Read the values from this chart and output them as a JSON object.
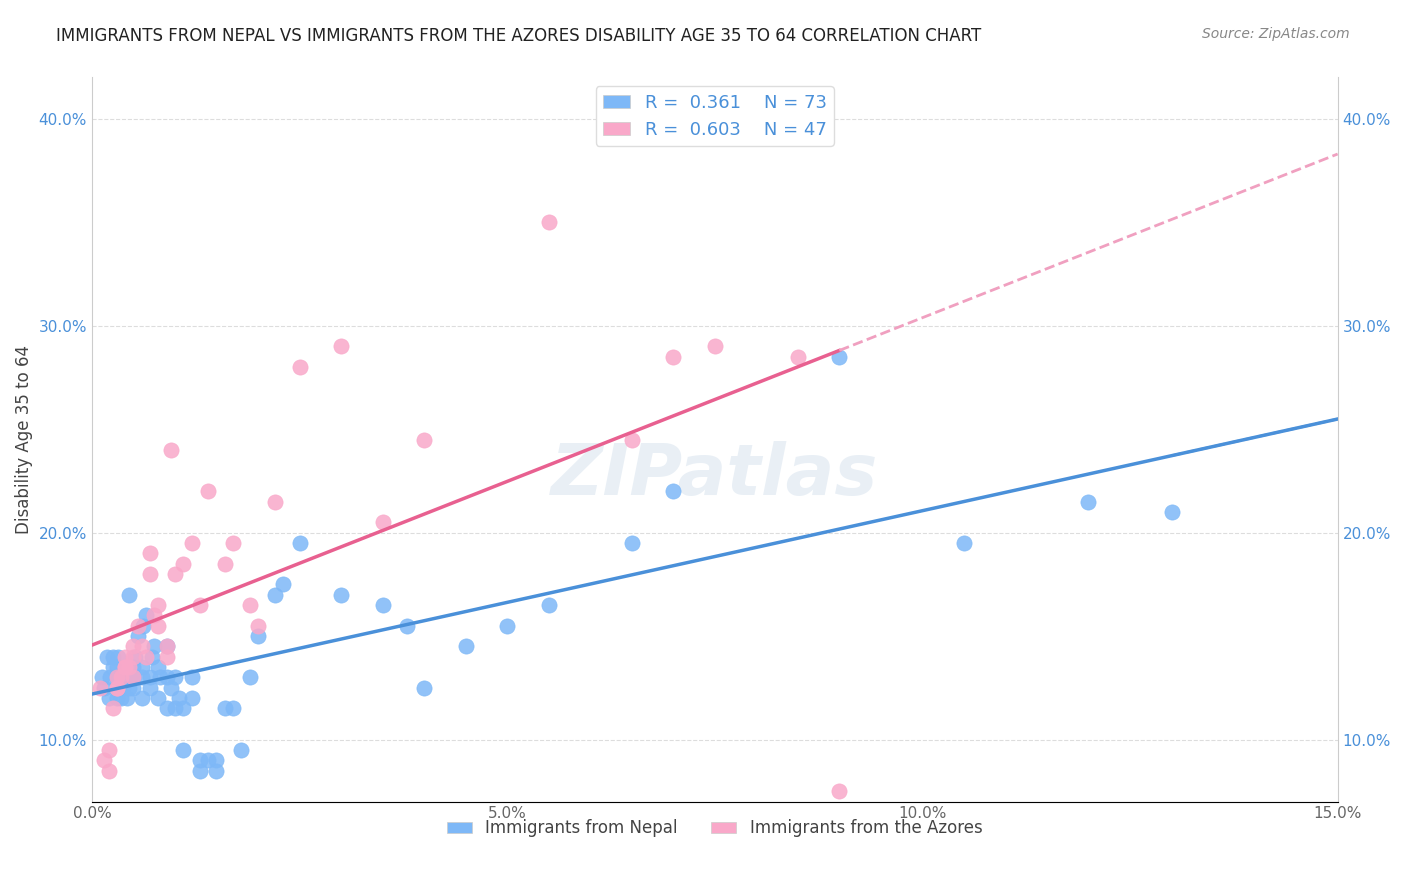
{
  "title": "IMMIGRANTS FROM NEPAL VS IMMIGRANTS FROM THE AZORES DISABILITY AGE 35 TO 64 CORRELATION CHART",
  "source": "Source: ZipAtlas.com",
  "xlabel_bottom": "",
  "ylabel": "Disability Age 35 to 64",
  "xlim": [
    0.0,
    0.15
  ],
  "ylim": [
    0.07,
    0.42
  ],
  "xticks": [
    0.0,
    0.05,
    0.1,
    0.15
  ],
  "xtick_labels": [
    "0.0%",
    "5.0%",
    "10.0%",
    "15.0%"
  ],
  "yticks": [
    0.1,
    0.2,
    0.3,
    0.4
  ],
  "ytick_labels": [
    "10.0%",
    "20.0%",
    "30.0%",
    "40.0%"
  ],
  "nepal_color": "#7EB8F7",
  "azores_color": "#F9A8C9",
  "nepal_R": "0.361",
  "nepal_N": "73",
  "azores_R": "0.603",
  "azores_N": "47",
  "nepal_x": [
    0.0012,
    0.0015,
    0.0018,
    0.002,
    0.0022,
    0.0025,
    0.0025,
    0.003,
    0.003,
    0.003,
    0.0032,
    0.0035,
    0.0038,
    0.004,
    0.004,
    0.0042,
    0.0045,
    0.0045,
    0.005,
    0.005,
    0.005,
    0.005,
    0.0052,
    0.0055,
    0.006,
    0.006,
    0.006,
    0.0062,
    0.0065,
    0.007,
    0.007,
    0.0072,
    0.0075,
    0.008,
    0.008,
    0.0082,
    0.009,
    0.009,
    0.009,
    0.0095,
    0.01,
    0.01,
    0.0105,
    0.011,
    0.011,
    0.012,
    0.012,
    0.013,
    0.013,
    0.014,
    0.015,
    0.015,
    0.016,
    0.017,
    0.018,
    0.019,
    0.02,
    0.022,
    0.023,
    0.025,
    0.03,
    0.035,
    0.038,
    0.04,
    0.045,
    0.05,
    0.055,
    0.065,
    0.07,
    0.09,
    0.105,
    0.12,
    0.13
  ],
  "nepal_y": [
    0.13,
    0.125,
    0.14,
    0.12,
    0.13,
    0.135,
    0.14,
    0.12,
    0.13,
    0.135,
    0.14,
    0.12,
    0.125,
    0.13,
    0.135,
    0.12,
    0.125,
    0.17,
    0.13,
    0.125,
    0.13,
    0.135,
    0.14,
    0.15,
    0.13,
    0.12,
    0.135,
    0.155,
    0.16,
    0.125,
    0.13,
    0.14,
    0.145,
    0.12,
    0.135,
    0.13,
    0.145,
    0.13,
    0.115,
    0.125,
    0.115,
    0.13,
    0.12,
    0.095,
    0.115,
    0.12,
    0.13,
    0.085,
    0.09,
    0.09,
    0.09,
    0.085,
    0.115,
    0.115,
    0.095,
    0.13,
    0.15,
    0.17,
    0.175,
    0.195,
    0.17,
    0.165,
    0.155,
    0.125,
    0.145,
    0.155,
    0.165,
    0.195,
    0.22,
    0.285,
    0.195,
    0.215,
    0.21
  ],
  "azores_x": [
    0.001,
    0.0015,
    0.002,
    0.002,
    0.0025,
    0.003,
    0.003,
    0.003,
    0.0035,
    0.004,
    0.004,
    0.004,
    0.0045,
    0.005,
    0.005,
    0.005,
    0.0055,
    0.006,
    0.0065,
    0.007,
    0.007,
    0.0075,
    0.008,
    0.008,
    0.009,
    0.009,
    0.0095,
    0.01,
    0.011,
    0.012,
    0.013,
    0.014,
    0.016,
    0.017,
    0.019,
    0.02,
    0.022,
    0.025,
    0.03,
    0.035,
    0.04,
    0.055,
    0.065,
    0.07,
    0.075,
    0.085,
    0.09
  ],
  "azores_y": [
    0.125,
    0.09,
    0.095,
    0.085,
    0.115,
    0.125,
    0.125,
    0.13,
    0.13,
    0.135,
    0.135,
    0.14,
    0.135,
    0.13,
    0.14,
    0.145,
    0.155,
    0.145,
    0.14,
    0.19,
    0.18,
    0.16,
    0.155,
    0.165,
    0.14,
    0.145,
    0.24,
    0.18,
    0.185,
    0.195,
    0.165,
    0.22,
    0.185,
    0.195,
    0.165,
    0.155,
    0.215,
    0.28,
    0.29,
    0.205,
    0.245,
    0.35,
    0.245,
    0.285,
    0.29,
    0.285,
    0.075
  ],
  "background_color": "#ffffff",
  "grid_color": "#dddddd",
  "watermark": "ZIPatlas",
  "nepal_line_color": "#4A90D9",
  "azores_line_color": "#E86090",
  "azores_dashed_color": "#F0A0C0"
}
